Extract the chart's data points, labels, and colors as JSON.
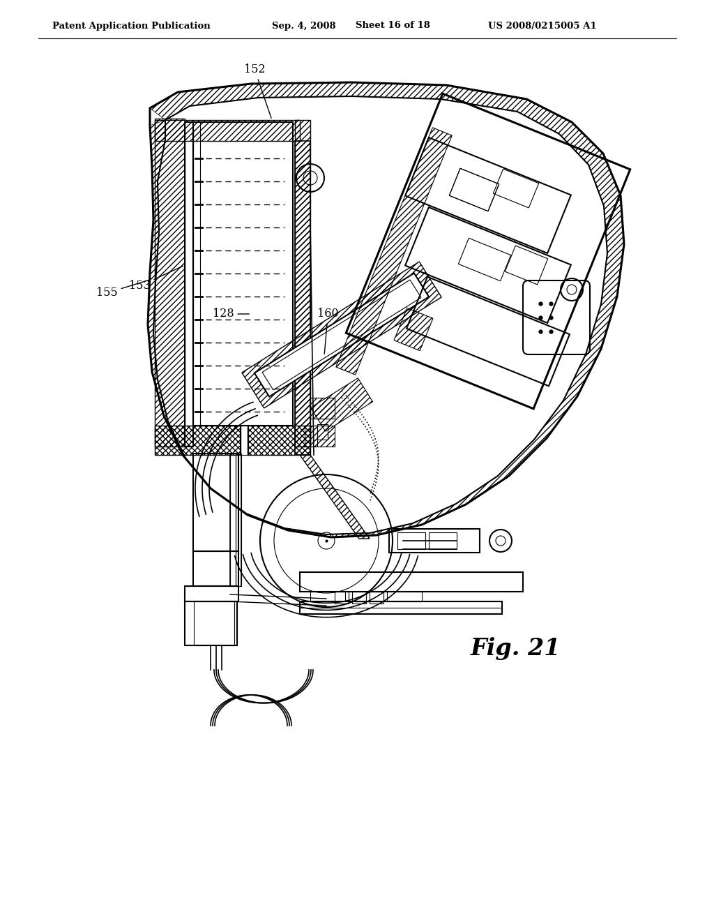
{
  "background_color": "#ffffff",
  "header_left": "Patent Application Publication",
  "header_center": "Sep. 4, 2008   Sheet 16 of 18",
  "header_right": "US 2008/0215005 A1",
  "fig_label": "Fig. 21",
  "line_color": "#000000"
}
